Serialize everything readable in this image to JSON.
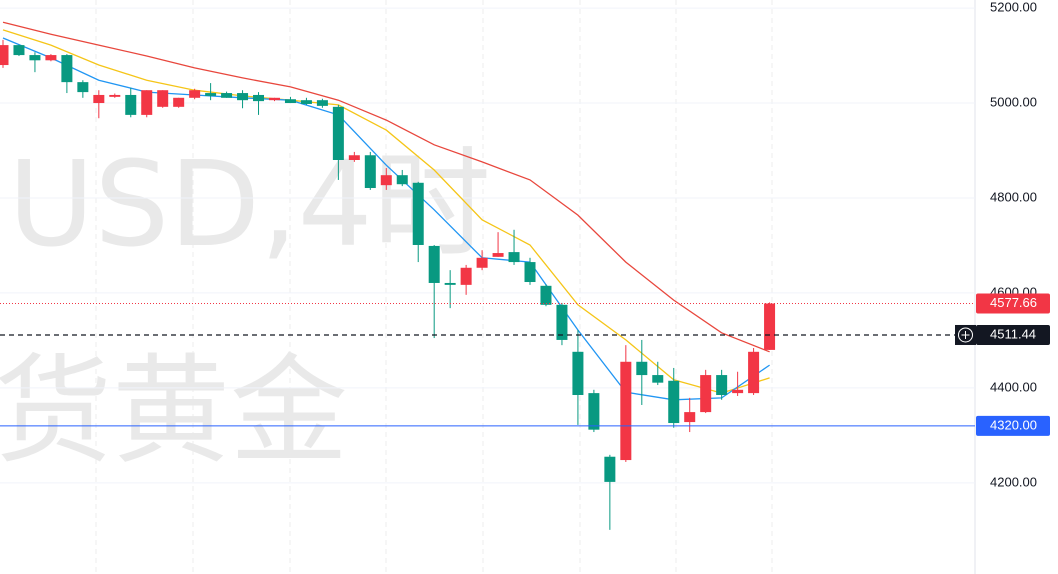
{
  "chart_data": {
    "type": "candlestick",
    "watermark": [
      "USD,4时",
      "货黄金"
    ],
    "up_color": "#f23645",
    "down_color": "#089981",
    "ylim": [
      4008,
      5217
    ],
    "yticks": [
      {
        "value": 4200,
        "label": "4200.00"
      },
      {
        "value": 4400,
        "label": "4400.00"
      },
      {
        "value": 4600,
        "label": "4600.00"
      },
      {
        "value": 4800,
        "label": "4800.00"
      },
      {
        "value": 5000,
        "label": "5000.00"
      },
      {
        "value": 5200,
        "label": "5200.00"
      }
    ],
    "grid": true,
    "candles": {
      "open": [
        5080,
        5122,
        5101,
        5090,
        5101,
        5044,
        5000,
        5013,
        5017,
        4975,
        4992,
        4992,
        5011,
        5021,
        5021,
        5021,
        5017,
        5006,
        5008,
        5006,
        5006,
        4992,
        4880,
        4890,
        4827,
        4848,
        4832,
        4699,
        4621,
        4617,
        4653,
        4676,
        4686,
        4665,
        4615,
        4575,
        4476,
        4389,
        4255,
        4248,
        4455,
        4427,
        4415,
        4328,
        4349,
        4427,
        4389,
        4389,
        4480
      ],
      "high": [
        5133,
        5123,
        5107,
        5103,
        5103,
        5048,
        5027,
        5020,
        5032,
        5027,
        5027,
        5011,
        5030,
        5042,
        5024,
        5027,
        5023,
        5011,
        5013,
        5011,
        5009,
        4996,
        4897,
        4897,
        4863,
        4859,
        4834,
        4701,
        4648,
        4659,
        4690,
        4728,
        4733,
        4674,
        4618,
        4579,
        4522,
        4396,
        4259,
        4490,
        4501,
        4455,
        4442,
        4379,
        4438,
        4438,
        4434,
        4484,
        4580
      ],
      "low": [
        5074,
        5099,
        5065,
        5088,
        5021,
        5011,
        4968,
        5011,
        4970,
        4970,
        4990,
        4990,
        5008,
        5006,
        5011,
        4989,
        4975,
        5004,
        5000,
        4996,
        4990,
        4838,
        4876,
        4817,
        4817,
        4825,
        4665,
        4505,
        4568,
        4596,
        4648,
        4676,
        4659,
        4617,
        4572,
        4490,
        4322,
        4307,
        4101,
        4244,
        4364,
        4406,
        4316,
        4307,
        4347,
        4375,
        4383,
        4385,
        4480
      ],
      "close": [
        5122,
        5101,
        5090,
        5101,
        5044,
        5023,
        5017,
        5017,
        4975,
        5027,
        5027,
        5011,
        5027,
        5015,
        5011,
        5006,
        5004,
        5011,
        5000,
        4998,
        4994,
        4880,
        4890,
        4821,
        4848,
        4829,
        4701,
        4621,
        4617,
        4653,
        4674,
        4684,
        4665,
        4623,
        4575,
        4501,
        4385,
        4312,
        4202,
        4455,
        4427,
        4411,
        4326,
        4349,
        4427,
        4385,
        4396,
        4476,
        4577.66
      ]
    },
    "moving_averages": [
      {
        "color": "#e8473d",
        "x": [
          0,
          3,
          6,
          9,
          12,
          15,
          18,
          21,
          24,
          27,
          30,
          33,
          36,
          39,
          42,
          45,
          48
        ],
        "values": [
          5170,
          5145,
          5122,
          5099,
          5074,
          5053,
          5034,
          5006,
          4964,
          4912,
          4876,
          4838,
          4764,
          4665,
          4585,
          4516,
          4476
        ]
      },
      {
        "color": "#f5c518",
        "x": [
          0,
          3,
          6,
          9,
          12,
          15,
          18,
          21,
          24,
          27,
          30,
          33,
          36,
          39,
          42,
          45,
          48
        ],
        "values": [
          5154,
          5122,
          5080,
          5048,
          5027,
          5015,
          5006,
          4996,
          4943,
          4859,
          4754,
          4701,
          4575,
          4501,
          4417,
          4389,
          4421
        ]
      },
      {
        "color": "#2196f3",
        "x": [
          0,
          3,
          6,
          9,
          12,
          15,
          18,
          21,
          24,
          27,
          30,
          33,
          36,
          39,
          42,
          45,
          48
        ],
        "values": [
          5137,
          5095,
          5048,
          5023,
          5017,
          5011,
          5006,
          4975,
          4869,
          4775,
          4674,
          4665,
          4522,
          4391,
          4375,
          4379,
          4448
        ]
      }
    ],
    "price_lines": [
      {
        "value": 4577.66,
        "label": "4577.66",
        "color": "#f23645",
        "style": "dotted"
      },
      {
        "value": 4511.44,
        "label": "4511.44",
        "color": "#131722",
        "style": "dashed"
      },
      {
        "value": 4320,
        "label": "4320.00",
        "color": "#2962ff",
        "style": "solid"
      }
    ]
  }
}
